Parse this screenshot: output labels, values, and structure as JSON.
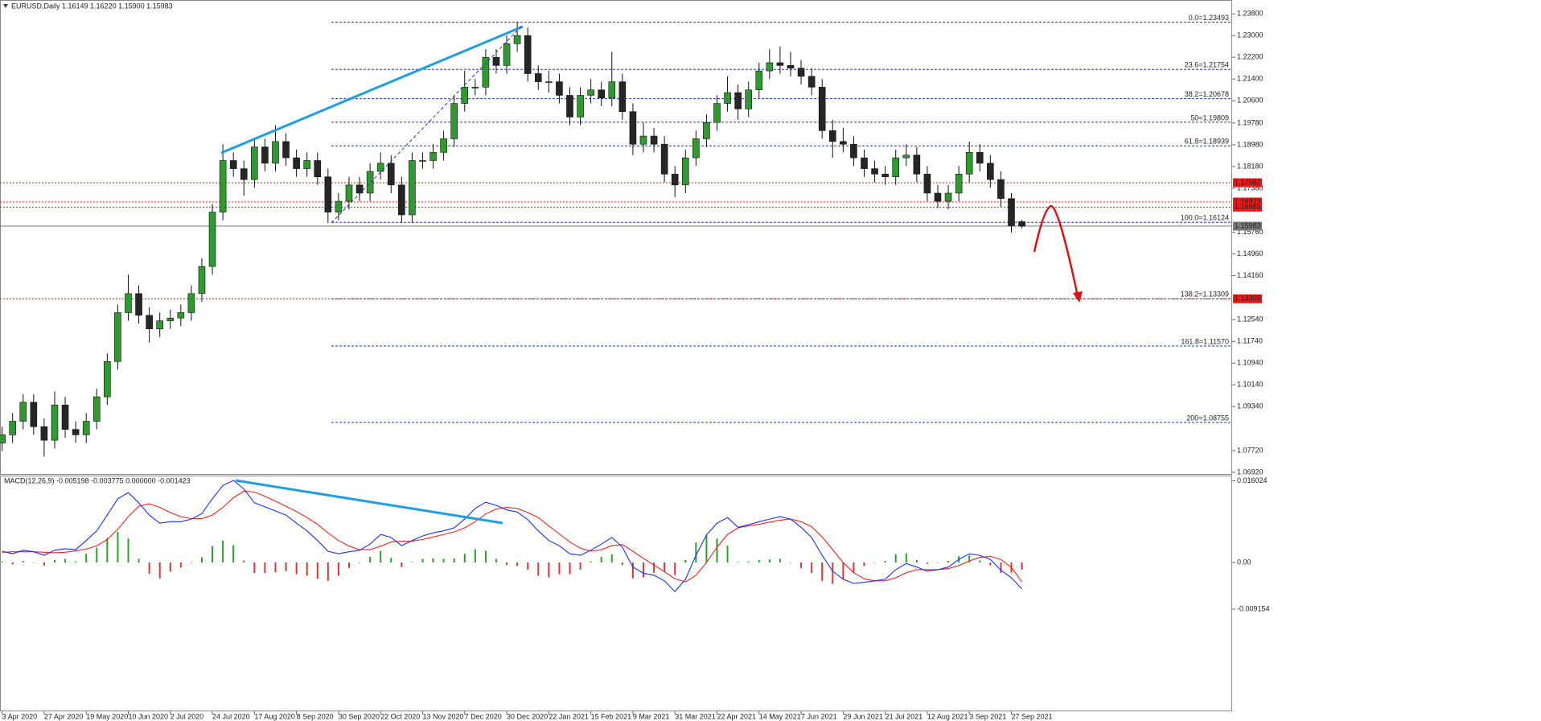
{
  "chart_data": [
    {
      "type": "candlestick",
      "title": "EURUSD,Daily  1.16149 1.16220 1.15900 1.15983",
      "open": [
        1.08,
        1.083,
        1.088,
        1.095,
        1.086,
        1.081,
        1.094,
        1.085,
        1.083,
        1.088,
        1.097,
        1.11,
        1.128,
        1.135,
        1.127,
        1.122,
        1.125,
        1.126,
        1.128,
        1.135,
        1.145,
        1.165,
        1.184,
        1.181,
        1.177,
        1.189,
        1.183,
        1.191,
        1.185,
        1.181,
        1.184,
        1.178,
        1.165,
        1.169,
        1.175,
        1.172,
        1.18,
        1.183,
        1.175,
        1.164,
        1.184,
        1.184,
        1.187,
        1.192,
        1.205,
        1.211,
        1.211,
        1.222,
        1.219,
        1.227,
        1.23,
        1.216,
        1.213,
        1.213,
        1.208,
        1.2,
        1.208,
        1.21,
        1.207,
        1.213,
        1.202,
        1.19,
        1.193,
        1.19,
        1.179,
        1.175,
        1.185,
        1.192,
        1.198,
        1.205,
        1.209,
        1.203,
        1.21,
        1.217,
        1.22,
        1.219,
        1.218,
        1.215,
        1.211,
        1.195,
        1.191,
        1.19,
        1.185,
        1.181,
        1.179,
        1.178,
        1.185,
        1.186,
        1.179,
        1.172,
        1.169,
        1.172,
        1.179,
        1.187,
        1.183,
        1.177,
        1.17,
        1.16149
      ],
      "high": [
        1.086,
        1.091,
        1.098,
        1.098,
        1.089,
        1.099,
        1.097,
        1.088,
        1.091,
        1.1,
        1.113,
        1.131,
        1.142,
        1.138,
        1.13,
        1.128,
        1.129,
        1.131,
        1.138,
        1.148,
        1.168,
        1.19,
        1.187,
        1.184,
        1.192,
        1.192,
        1.197,
        1.194,
        1.188,
        1.187,
        1.187,
        1.181,
        1.172,
        1.178,
        1.178,
        1.183,
        1.187,
        1.186,
        1.178,
        1.187,
        1.187,
        1.19,
        1.195,
        1.208,
        1.217,
        1.214,
        1.225,
        1.225,
        1.23,
        1.2349,
        1.233,
        1.219,
        1.217,
        1.216,
        1.211,
        1.211,
        1.214,
        1.213,
        1.224,
        1.216,
        1.205,
        1.198,
        1.196,
        1.193,
        1.182,
        1.188,
        1.195,
        1.201,
        1.208,
        1.215,
        1.212,
        1.213,
        1.22,
        1.225,
        1.226,
        1.224,
        1.221,
        1.218,
        1.214,
        1.199,
        1.196,
        1.193,
        1.188,
        1.184,
        1.182,
        1.188,
        1.19,
        1.189,
        1.182,
        1.175,
        1.175,
        1.182,
        1.191,
        1.19,
        1.186,
        1.18,
        1.172,
        1.1622
      ],
      "low": [
        1.077,
        1.08,
        1.085,
        1.083,
        1.075,
        1.078,
        1.082,
        1.08,
        1.08,
        1.085,
        1.094,
        1.107,
        1.125,
        1.124,
        1.117,
        1.119,
        1.122,
        1.123,
        1.125,
        1.132,
        1.142,
        1.162,
        1.178,
        1.171,
        1.174,
        1.18,
        1.18,
        1.182,
        1.178,
        1.178,
        1.175,
        1.161,
        1.162,
        1.166,
        1.169,
        1.169,
        1.177,
        1.172,
        1.161,
        1.161,
        1.181,
        1.181,
        1.184,
        1.189,
        1.202,
        1.208,
        1.208,
        1.216,
        1.216,
        1.224,
        1.213,
        1.21,
        1.209,
        1.205,
        1.197,
        1.197,
        1.205,
        1.204,
        1.204,
        1.199,
        1.186,
        1.187,
        1.187,
        1.176,
        1.1705,
        1.172,
        1.182,
        1.189,
        1.195,
        1.202,
        1.199,
        1.2,
        1.207,
        1.214,
        1.216,
        1.215,
        1.212,
        1.208,
        1.192,
        1.185,
        1.187,
        1.182,
        1.178,
        1.176,
        1.175,
        1.175,
        1.182,
        1.176,
        1.169,
        1.1665,
        1.166,
        1.169,
        1.176,
        1.18,
        1.174,
        1.167,
        1.1575,
        1.159
      ],
      "close": [
        1.083,
        1.088,
        1.095,
        1.086,
        1.081,
        1.094,
        1.085,
        1.083,
        1.088,
        1.097,
        1.11,
        1.128,
        1.135,
        1.127,
        1.122,
        1.125,
        1.126,
        1.128,
        1.135,
        1.145,
        1.165,
        1.184,
        1.181,
        1.177,
        1.189,
        1.183,
        1.191,
        1.185,
        1.181,
        1.184,
        1.178,
        1.165,
        1.169,
        1.175,
        1.172,
        1.18,
        1.183,
        1.175,
        1.164,
        1.184,
        1.184,
        1.187,
        1.192,
        1.205,
        1.211,
        1.211,
        1.222,
        1.219,
        1.227,
        1.23,
        1.216,
        1.213,
        1.213,
        1.208,
        1.2,
        1.208,
        1.21,
        1.207,
        1.213,
        1.202,
        1.19,
        1.193,
        1.19,
        1.179,
        1.175,
        1.185,
        1.192,
        1.198,
        1.205,
        1.209,
        1.203,
        1.21,
        1.217,
        1.22,
        1.219,
        1.218,
        1.215,
        1.211,
        1.195,
        1.191,
        1.19,
        1.185,
        1.181,
        1.179,
        1.178,
        1.185,
        1.186,
        1.179,
        1.172,
        1.169,
        1.172,
        1.179,
        1.187,
        1.183,
        1.177,
        1.17,
        1.16,
        1.15983
      ],
      "bull_color": "#2f9a2f",
      "bear_color": "#262626",
      "xlim": [
        -0.2,
        117
      ],
      "xticks": [
        {
          "value": 0,
          "label": "3 Apr 2020"
        },
        {
          "value": 4,
          "label": "27 Apr 2020"
        },
        {
          "value": 8,
          "label": "19 May 2020"
        },
        {
          "value": 12,
          "label": "10 Jun 2020"
        },
        {
          "value": 16,
          "label": "2 Jul 2020"
        },
        {
          "value": 20,
          "label": "24 Jul 2020"
        },
        {
          "value": 24,
          "label": "17 Aug 2020"
        },
        {
          "value": 28,
          "label": "8 Sep 2020"
        },
        {
          "value": 32,
          "label": "30 Sep 2020"
        },
        {
          "value": 36,
          "label": "22 Oct 2020"
        },
        {
          "value": 40,
          "label": "13 Nov 2020"
        },
        {
          "value": 44,
          "label": "7 Dec 2020"
        },
        {
          "value": 48,
          "label": "30 Dec 2020"
        },
        {
          "value": 52,
          "label": "22 Jan 2021"
        },
        {
          "value": 56,
          "label": "15 Feb 2021"
        },
        {
          "value": 60,
          "label": "9 Mar 2021"
        },
        {
          "value": 64,
          "label": "31 Mar 2021"
        },
        {
          "value": 68,
          "label": "22 Apr 2021"
        },
        {
          "value": 72,
          "label": "14 May 2021"
        },
        {
          "value": 76,
          "label": "7 Jun 2021"
        },
        {
          "value": 80,
          "label": "29 Jun 2021"
        },
        {
          "value": 84,
          "label": "21 Jul 2021"
        },
        {
          "value": 88,
          "label": "12 Aug 2021"
        },
        {
          "value": 92,
          "label": "3 Sep 2021"
        },
        {
          "value": 96,
          "label": "27 Sep 2021"
        }
      ],
      "ylim": [
        1.0683,
        1.2431
      ],
      "yticks": [
        {
          "value": 1.238,
          "label": "1.23800"
        },
        {
          "value": 1.23,
          "label": "1.23000"
        },
        {
          "value": 1.222,
          "label": "1.22200"
        },
        {
          "value": 1.214,
          "label": "1.21400"
        },
        {
          "value": 1.206,
          "label": "1.20600"
        },
        {
          "value": 1.1978,
          "label": "1.19780"
        },
        {
          "value": 1.1898,
          "label": "1.18980"
        },
        {
          "value": 1.1818,
          "label": "1.18180"
        },
        {
          "value": 1.1738,
          "label": "1.17380"
        },
        {
          "value": 1.1576,
          "label": "1.15760"
        },
        {
          "value": 1.1496,
          "label": "1.14960"
        },
        {
          "value": 1.1416,
          "label": "1.14160"
        },
        {
          "value": 1.1254,
          "label": "1.12540"
        },
        {
          "value": 1.1174,
          "label": "1.11740"
        },
        {
          "value": 1.1094,
          "label": "1.10940"
        },
        {
          "value": 1.1014,
          "label": "1.10140"
        },
        {
          "value": 1.0934,
          "label": "1.09340"
        },
        {
          "value": 1.0772,
          "label": "1.07720"
        },
        {
          "value": 1.0692,
          "label": "1.06920"
        }
      ],
      "fib_color": "#2233bb",
      "fib_levels": [
        {
          "value": 1.23493,
          "label": "0.0=1.23493"
        },
        {
          "value": 1.21754,
          "label": "23.6=1.21754"
        },
        {
          "value": 1.20678,
          "label": "38.2=1.20678"
        },
        {
          "value": 1.19809,
          "label": "50=1.19809"
        },
        {
          "value": 1.18939,
          "label": "61.8=1.18939"
        },
        {
          "value": 1.16124,
          "label": "100.0=1.16124"
        },
        {
          "value": 1.13309,
          "label": "138.2=1.13309"
        },
        {
          "value": 1.1157,
          "label": "161.8=1.11570"
        },
        {
          "value": 1.08755,
          "label": "200=1.08755"
        }
      ],
      "level_color": "#e21b1b",
      "levels": [
        1.17582,
        1.16873,
        1.16685,
        1.13309
      ],
      "current_price": 1.15983,
      "current_color": "#7a7a7a"
    },
    {
      "type": "macd",
      "title": "MACD(12,26,9) -0.005198 -0.003775 0.000000 -0.001423",
      "macd": [
        0.0022,
        0.0017,
        0.0024,
        0.0021,
        0.0014,
        0.0024,
        0.0027,
        0.0025,
        0.0043,
        0.0062,
        0.0093,
        0.0125,
        0.0137,
        0.0117,
        0.0093,
        0.0077,
        0.008,
        0.008,
        0.0085,
        0.0096,
        0.0125,
        0.0151,
        0.0161,
        0.0144,
        0.0117,
        0.0109,
        0.0101,
        0.0093,
        0.0077,
        0.0062,
        0.0043,
        0.0022,
        0.0017,
        0.0021,
        0.0024,
        0.0036,
        0.0055,
        0.0049,
        0.0033,
        0.0043,
        0.0052,
        0.0058,
        0.0062,
        0.0068,
        0.0085,
        0.0106,
        0.0118,
        0.0112,
        0.0103,
        0.0099,
        0.0084,
        0.0062,
        0.0043,
        0.0033,
        0.0017,
        0.0014,
        0.0024,
        0.0036,
        0.0049,
        0.003,
        -0.0009,
        -0.0021,
        -0.0025,
        -0.0036,
        -0.0057,
        -0.0033,
        0.0014,
        0.0054,
        0.0077,
        0.0088,
        0.0069,
        0.0074,
        0.008,
        0.0085,
        0.009,
        0.0085,
        0.0069,
        0.0049,
        0.0014,
        -0.0017,
        -0.0033,
        -0.0041,
        -0.0039,
        -0.0036,
        -0.0033,
        -0.0014,
        -0.0002,
        -0.0009,
        -0.0017,
        -0.0014,
        -0.0009,
        0.0006,
        0.0017,
        0.0014,
        0.0006,
        -0.0015,
        -0.003,
        -0.0052
      ],
      "signal": [
        0.002,
        0.0021,
        0.0021,
        0.0021,
        0.002,
        0.0019,
        0.002,
        0.0023,
        0.0026,
        0.0033,
        0.0045,
        0.0065,
        0.009,
        0.011,
        0.0115,
        0.0108,
        0.0098,
        0.009,
        0.0086,
        0.0086,
        0.0093,
        0.0108,
        0.0127,
        0.014,
        0.0138,
        0.013,
        0.012,
        0.011,
        0.01,
        0.0088,
        0.0075,
        0.0058,
        0.0043,
        0.0032,
        0.0025,
        0.0025,
        0.0032,
        0.004,
        0.0042,
        0.0042,
        0.0045,
        0.005,
        0.0055,
        0.006,
        0.0068,
        0.008,
        0.0095,
        0.0105,
        0.0108,
        0.0106,
        0.0098,
        0.0088,
        0.0072,
        0.0056,
        0.004,
        0.0028,
        0.0022,
        0.0025,
        0.0033,
        0.0035,
        0.0022,
        0.0008,
        -0.0005,
        -0.0018,
        -0.0032,
        -0.0038,
        -0.0025,
        0,
        0.003,
        0.0055,
        0.0068,
        0.0072,
        0.0075,
        0.0079,
        0.0083,
        0.0085,
        0.008,
        0.007,
        0.005,
        0.0025,
        0,
        -0.002,
        -0.0032,
        -0.0036,
        -0.0036,
        -0.003,
        -0.002,
        -0.0014,
        -0.0014,
        -0.0014,
        -0.0012,
        -0.0006,
        0.0003,
        0.001,
        0.0012,
        0.0006,
        -0.001,
        -0.0038
      ],
      "histogram": [
        0.0002,
        -0.0004,
        0.0003,
        0,
        -0.0006,
        0.0005,
        0.0007,
        0.0002,
        0.0017,
        0.0029,
        0.0048,
        0.006,
        0.0047,
        0.0007,
        -0.0022,
        -0.0031,
        -0.0018,
        -0.001,
        -0.0001,
        0.001,
        0.0032,
        0.0043,
        0.0034,
        0.0004,
        -0.0021,
        -0.0021,
        -0.0019,
        -0.0017,
        -0.0023,
        -0.0026,
        -0.0032,
        -0.0036,
        -0.0026,
        -0.0011,
        -0.0001,
        0.0011,
        0.0023,
        0.0009,
        -0.0009,
        0.0001,
        0.0007,
        0.0008,
        0.0007,
        0.0008,
        0.0017,
        0.0026,
        0.0023,
        0.0007,
        -0.0005,
        -0.0007,
        -0.0014,
        -0.0026,
        -0.0029,
        -0.0023,
        -0.0023,
        -0.0014,
        0.0002,
        0.0011,
        0.0016,
        -0.0005,
        -0.0031,
        -0.0029,
        -0.002,
        -0.0018,
        -0.0025,
        0.0005,
        0.0039,
        0.0054,
        0.0047,
        0.0033,
        0.0001,
        0.0002,
        0.0005,
        0.0006,
        0.0007,
        0,
        -0.0011,
        -0.0021,
        -0.0036,
        -0.0042,
        -0.0033,
        -0.0021,
        -0.0007,
        0,
        0.0003,
        0.0016,
        0.0018,
        0.0005,
        -0.0003,
        0,
        0.0003,
        0.0012,
        0.0014,
        0.0004,
        -0.0006,
        -0.0021,
        -0.002,
        -0.0014
      ],
      "macd_color": "#1a2eff",
      "signal_color": "#ff1f1f",
      "hist_up_color": "#2aa02a",
      "hist_down_color": "#e53333",
      "ylim": [
        -0.0292,
        0.0172
      ],
      "yticks": [
        0.016024,
        {
          "value": 0,
          "label": "0.00"
        },
        -0.009154
      ]
    }
  ]
}
